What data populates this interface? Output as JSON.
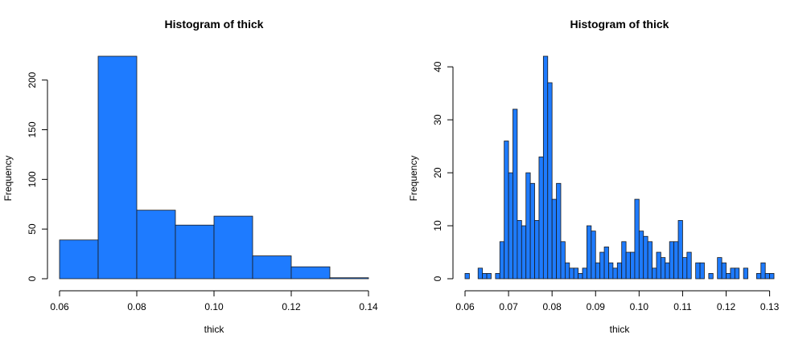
{
  "chart_data": [
    {
      "type": "bar",
      "title": "Histogram of thick",
      "xlabel": "thick",
      "ylabel": "Frequency",
      "bar_color": "#1E7BFF",
      "bin_edges": [
        0.06,
        0.07,
        0.08,
        0.09,
        0.1,
        0.11,
        0.12,
        0.13,
        0.14
      ],
      "values": [
        39,
        224,
        69,
        54,
        63,
        23,
        12,
        1
      ],
      "xlim": [
        0.06,
        0.14
      ],
      "ylim": [
        0,
        224
      ],
      "x_ticks": [
        0.06,
        0.08,
        0.1,
        0.12,
        0.14
      ],
      "x_tick_labels": [
        "0.06",
        "0.08",
        "0.10",
        "0.12",
        "0.14"
      ],
      "y_ticks": [
        0,
        50,
        100,
        150,
        200
      ],
      "y_tick_labels": [
        "0",
        "50",
        "100",
        "150",
        "200"
      ],
      "grid": false
    },
    {
      "type": "bar",
      "title": "Histogram of thick",
      "xlabel": "thick",
      "ylabel": "Frequency",
      "bar_color": "#1E7BFF",
      "bin_start": 0.06,
      "bin_width": 0.001,
      "values": [
        1,
        0,
        0,
        2,
        1,
        1,
        0,
        1,
        7,
        26,
        20,
        32,
        11,
        10,
        20,
        18,
        11,
        23,
        42,
        37,
        15,
        18,
        7,
        3,
        2,
        2,
        1,
        2,
        10,
        9,
        3,
        5,
        6,
        3,
        2,
        3,
        7,
        5,
        5,
        15,
        9,
        8,
        7,
        2,
        5,
        4,
        3,
        7,
        7,
        11,
        4,
        5,
        0,
        3,
        3,
        0,
        1,
        0,
        4,
        3,
        1,
        2,
        2,
        0,
        2,
        0,
        0,
        1,
        3,
        1,
        1
      ],
      "xlim": [
        0.06,
        0.131
      ],
      "ylim": [
        0,
        42
      ],
      "x_ticks": [
        0.06,
        0.07,
        0.08,
        0.09,
        0.1,
        0.11,
        0.12,
        0.13
      ],
      "x_tick_labels": [
        "0.06",
        "0.07",
        "0.08",
        "0.09",
        "0.10",
        "0.11",
        "0.12",
        "0.13"
      ],
      "y_ticks": [
        0,
        10,
        20,
        30,
        40
      ],
      "y_tick_labels": [
        "0",
        "10",
        "20",
        "30",
        "40"
      ],
      "grid": false
    }
  ]
}
